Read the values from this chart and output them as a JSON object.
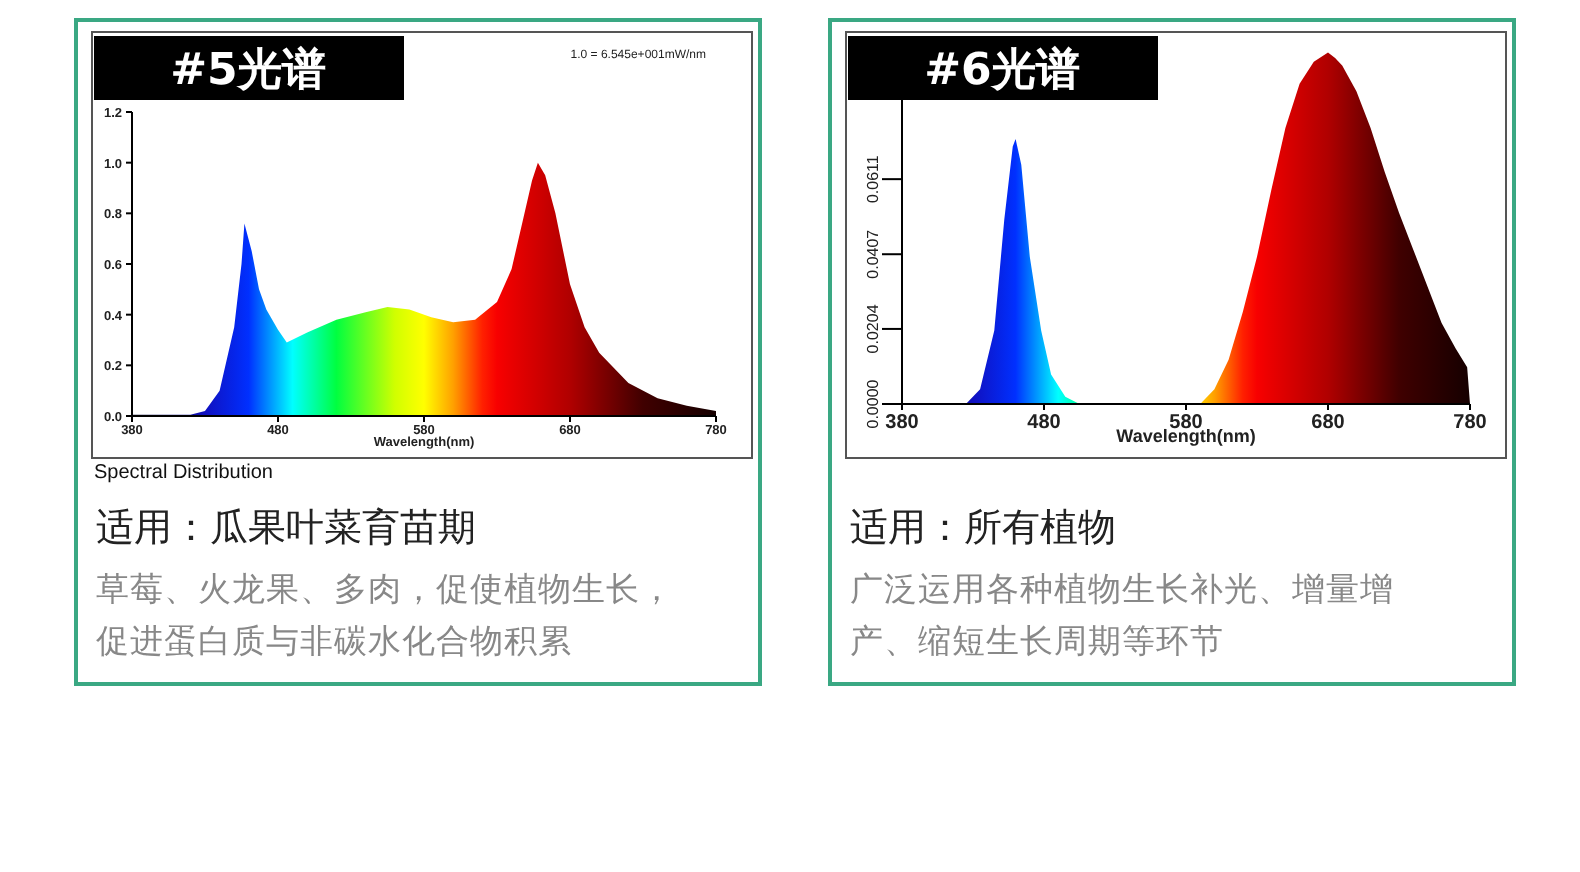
{
  "chart_data": [
    {
      "type": "area",
      "title": "#5光谱",
      "xlabel": "Wavelength(nm)",
      "xlim": [
        380,
        780
      ],
      "xticks": [
        380,
        480,
        580,
        680,
        780
      ],
      "ylim": [
        0,
        1.2
      ],
      "yticks": [
        {
          "value": 0,
          "label": "0.0"
        },
        {
          "value": 0.2,
          "label": "0.2"
        },
        {
          "value": 0.4,
          "label": "0.4"
        },
        {
          "value": 0.6,
          "label": "0.6"
        },
        {
          "value": 0.8,
          "label": "0.8"
        },
        {
          "value": 1,
          "label": "1.0"
        },
        {
          "value": 1.2,
          "label": "1.2"
        }
      ],
      "grid": false,
      "x": [
        380,
        420,
        430,
        440,
        450,
        455,
        457,
        462,
        467,
        472,
        480,
        486,
        500,
        520,
        540,
        555,
        570,
        585,
        600,
        615,
        630,
        640,
        648,
        654,
        658,
        663,
        670,
        680,
        690,
        700,
        720,
        740,
        760,
        780
      ],
      "values": [
        0.005,
        0.005,
        0.02,
        0.1,
        0.35,
        0.6,
        0.76,
        0.65,
        0.5,
        0.42,
        0.34,
        0.29,
        0.33,
        0.38,
        0.41,
        0.43,
        0.42,
        0.39,
        0.37,
        0.38,
        0.45,
        0.58,
        0.78,
        0.93,
        1.0,
        0.95,
        0.8,
        0.52,
        0.35,
        0.25,
        0.13,
        0.07,
        0.04,
        0.02
      ],
      "annotations": [
        "1.0 = 6.545e+001mW/nm",
        "Spectral Distribution",
        "适用：瓜果叶菜育苗期",
        "草莓、火龙果、多肉，促使植物生长，促进蛋白质与非碳水化合物积累"
      ]
    },
    {
      "type": "area",
      "title": "#6光谱",
      "xlabel": "Wavelength(nm)",
      "xlim": [
        380,
        780
      ],
      "xticks": [
        {
          "value": 380,
          "label": "380"
        },
        480,
        580,
        680,
        780
      ],
      "ylim": [
        0,
        0.1
      ],
      "yticks": [
        {
          "value": 0,
          "label": "0.0000"
        },
        {
          "value": 0.0204,
          "label": "0.0204"
        },
        {
          "value": 0.0407,
          "label": "0.0407"
        },
        {
          "value": 0.0611,
          "label": "0.0611"
        }
      ],
      "grid": false,
      "x": [
        380,
        425,
        435,
        445,
        452,
        458,
        460,
        464,
        470,
        478,
        485,
        495,
        505,
        590,
        600,
        610,
        620,
        630,
        640,
        650,
        660,
        670,
        680,
        685,
        690,
        700,
        710,
        720,
        730,
        740,
        750,
        760,
        770,
        778,
        780
      ],
      "values": [
        0,
        0,
        0.004,
        0.02,
        0.05,
        0.07,
        0.072,
        0.065,
        0.04,
        0.02,
        0.008,
        0.002,
        0,
        0,
        0.004,
        0.012,
        0.025,
        0.04,
        0.058,
        0.075,
        0.087,
        0.093,
        0.0955,
        0.094,
        0.092,
        0.085,
        0.075,
        0.063,
        0.052,
        0.042,
        0.032,
        0.022,
        0.015,
        0.01,
        0
      ],
      "annotations": [
        "适用：所有植物",
        "广泛运用各种植物生长补光、增量增产、缩短生长周期等环节"
      ]
    }
  ]
}
